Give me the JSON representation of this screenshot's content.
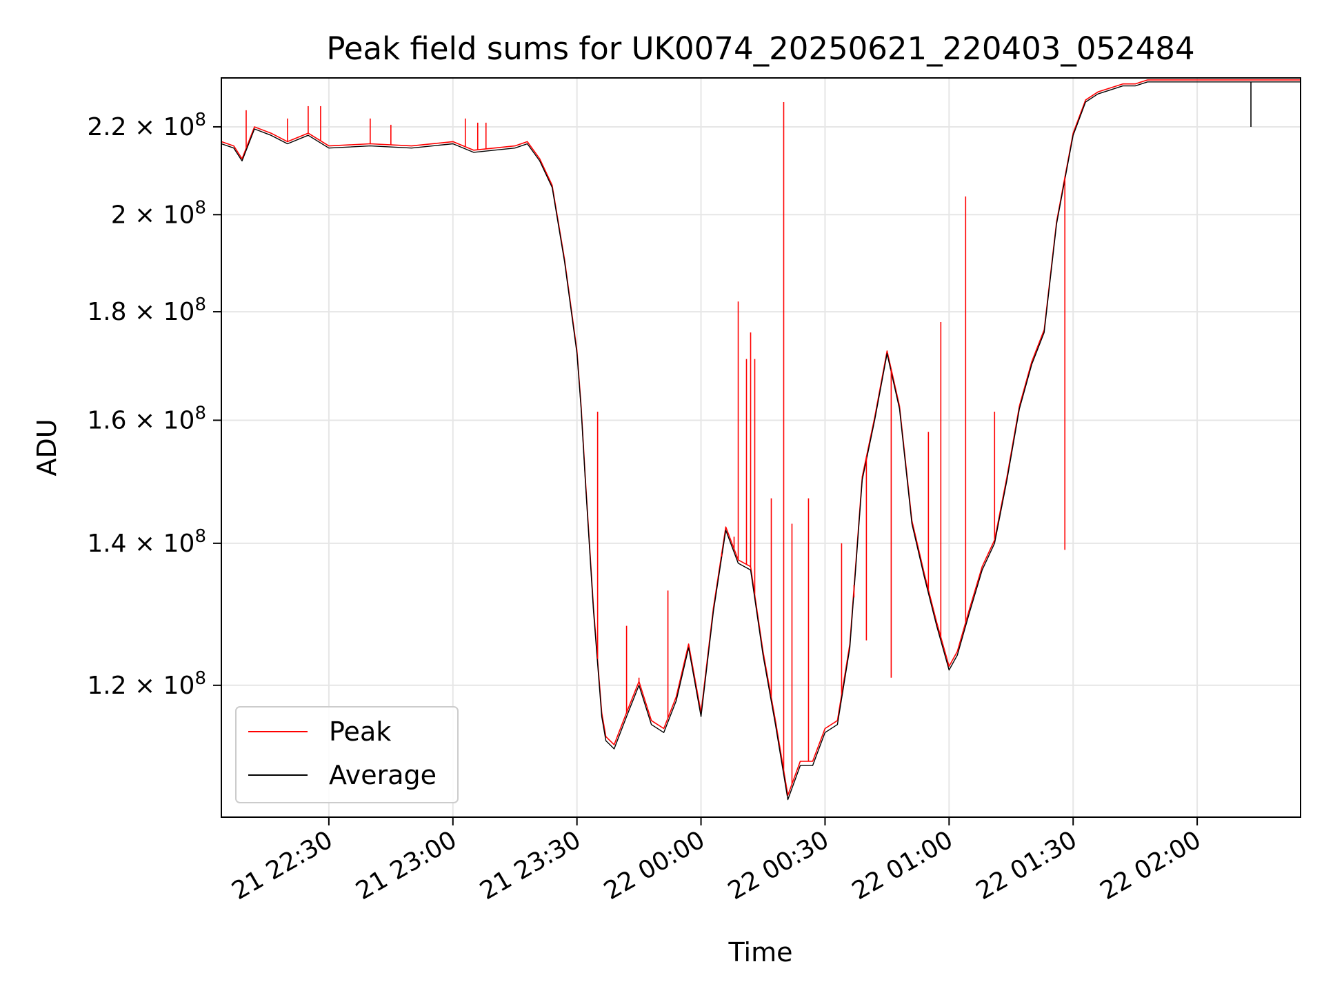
{
  "chart_data": {
    "type": "line",
    "title": "Peak field sums for UK0074_20250621_220403_052484",
    "xlabel": "Time",
    "ylabel": "ADU",
    "x_range": [
      "2025-06-21 22:04",
      "2025-06-22 02:25"
    ],
    "ylim": [
      104000000,
      232000000
    ],
    "y_scale": "log",
    "grid": true,
    "legend_position": "lower-left",
    "x_ticks": [
      {
        "value": "2025-06-21 22:30",
        "label": "21 22:30"
      },
      {
        "value": "2025-06-21 23:00",
        "label": "21 23:00"
      },
      {
        "value": "2025-06-21 23:30",
        "label": "21 23:30"
      },
      {
        "value": "2025-06-22 00:00",
        "label": "22 00:00"
      },
      {
        "value": "2025-06-22 00:30",
        "label": "22 00:30"
      },
      {
        "value": "2025-06-22 01:00",
        "label": "22 01:00"
      },
      {
        "value": "2025-06-22 01:30",
        "label": "22 01:30"
      },
      {
        "value": "2025-06-22 02:00",
        "label": "22 02:00"
      }
    ],
    "y_ticks": [
      {
        "value": 120000000,
        "mantissa": "1.2",
        "exp": "8"
      },
      {
        "value": 140000000,
        "mantissa": "1.4",
        "exp": "8"
      },
      {
        "value": 160000000,
        "mantissa": "1.6",
        "exp": "8"
      },
      {
        "value": 180000000,
        "mantissa": "1.8",
        "exp": "8"
      },
      {
        "value": 200000000,
        "mantissa": "2",
        "exp": "8"
      },
      {
        "value": 220000000,
        "mantissa": "2.2",
        "exp": "8"
      }
    ],
    "series": [
      {
        "name": "Average",
        "color": "#000000",
        "x": [
          "2025-06-21 22:04",
          "2025-06-21 22:07",
          "2025-06-21 22:09",
          "2025-06-21 22:12",
          "2025-06-21 22:16",
          "2025-06-21 22:20",
          "2025-06-21 22:25",
          "2025-06-21 22:30",
          "2025-06-21 22:40",
          "2025-06-21 22:50",
          "2025-06-21 23:00",
          "2025-06-21 23:05",
          "2025-06-21 23:10",
          "2025-06-21 23:15",
          "2025-06-21 23:18",
          "2025-06-21 23:21",
          "2025-06-21 23:24",
          "2025-06-21 23:27",
          "2025-06-21 23:30",
          "2025-06-21 23:31",
          "2025-06-21 23:32",
          "2025-06-21 23:34",
          "2025-06-21 23:36",
          "2025-06-21 23:37",
          "2025-06-21 23:39",
          "2025-06-21 23:42",
          "2025-06-21 23:45",
          "2025-06-21 23:48",
          "2025-06-21 23:51",
          "2025-06-21 23:54",
          "2025-06-21 23:57",
          "2025-06-22 00:00",
          "2025-06-22 00:03",
          "2025-06-22 00:06",
          "2025-06-22 00:09",
          "2025-06-22 00:12",
          "2025-06-22 00:15",
          "2025-06-22 00:18",
          "2025-06-22 00:21",
          "2025-06-22 00:24",
          "2025-06-22 00:27",
          "2025-06-22 00:30",
          "2025-06-22 00:33",
          "2025-06-22 00:36",
          "2025-06-22 00:39",
          "2025-06-22 00:42",
          "2025-06-22 00:45",
          "2025-06-22 00:48",
          "2025-06-22 00:51",
          "2025-06-22 00:54",
          "2025-06-22 00:57",
          "2025-06-22 01:00",
          "2025-06-22 01:02",
          "2025-06-22 01:05",
          "2025-06-22 01:08",
          "2025-06-22 01:11",
          "2025-06-22 01:14",
          "2025-06-22 01:17",
          "2025-06-22 01:20",
          "2025-06-22 01:23",
          "2025-06-22 01:26",
          "2025-06-22 01:30",
          "2025-06-22 01:33",
          "2025-06-22 01:36",
          "2025-06-22 01:39",
          "2025-06-22 01:42",
          "2025-06-22 01:45",
          "2025-06-22 01:48",
          "2025-06-22 01:51",
          "2025-06-22 01:54",
          "2025-06-22 01:57",
          "2025-06-22 02:00",
          "2025-06-22 02:05",
          "2025-06-22 02:10",
          "2025-06-22 02:12",
          "2025-06-22 02:15",
          "2025-06-22 02:20",
          "2025-06-22 02:25"
        ],
        "values": [
          216000000,
          215000000,
          212000000,
          219500000,
          218000000,
          216000000,
          218000000,
          215000000,
          215500000,
          215000000,
          216000000,
          214000000,
          214500000,
          215000000,
          216000000,
          212000000,
          206000000,
          190000000,
          172000000,
          162000000,
          150000000,
          130000000,
          116000000,
          113000000,
          112000000,
          116000000,
          120000000,
          115000000,
          114000000,
          118000000,
          125000000,
          116000000,
          130000000,
          142000000,
          137000000,
          136000000,
          124000000,
          115000000,
          106000000,
          110000000,
          110000000,
          114000000,
          115000000,
          125000000,
          150000000,
          160000000,
          172000000,
          162000000,
          143000000,
          135000000,
          128000000,
          122000000,
          124000000,
          130000000,
          136000000,
          140000000,
          150000000,
          162000000,
          170000000,
          176000000,
          198000000,
          218000000,
          226000000,
          228000000,
          229000000,
          230000000,
          230000000,
          231000000,
          231000000,
          231000000,
          231000000,
          231000000,
          231000000,
          231000000,
          231000000,
          231000000,
          231000000,
          231000000
        ]
      },
      {
        "name": "Peak",
        "color": "#ff0000",
        "x": [
          "2025-06-21 22:04",
          "2025-06-21 22:07",
          "2025-06-21 22:09",
          "2025-06-21 22:12",
          "2025-06-21 22:16",
          "2025-06-21 22:20",
          "2025-06-21 22:25",
          "2025-06-21 22:30",
          "2025-06-21 22:40",
          "2025-06-21 22:50",
          "2025-06-21 23:00",
          "2025-06-21 23:05",
          "2025-06-21 23:10",
          "2025-06-21 23:15",
          "2025-06-21 23:18",
          "2025-06-21 23:21",
          "2025-06-21 23:24",
          "2025-06-21 23:27",
          "2025-06-21 23:30",
          "2025-06-21 23:31",
          "2025-06-21 23:32",
          "2025-06-21 23:34",
          "2025-06-21 23:36",
          "2025-06-21 23:37",
          "2025-06-21 23:39",
          "2025-06-21 23:42",
          "2025-06-21 23:45",
          "2025-06-21 23:48",
          "2025-06-21 23:51",
          "2025-06-21 23:54",
          "2025-06-21 23:57",
          "2025-06-22 00:00",
          "2025-06-22 00:03",
          "2025-06-22 00:06",
          "2025-06-22 00:09",
          "2025-06-22 00:12",
          "2025-06-22 00:15",
          "2025-06-22 00:18",
          "2025-06-22 00:21",
          "2025-06-22 00:24",
          "2025-06-22 00:27",
          "2025-06-22 00:30",
          "2025-06-22 00:33",
          "2025-06-22 00:36",
          "2025-06-22 00:39",
          "2025-06-22 00:42",
          "2025-06-22 00:45",
          "2025-06-22 00:48",
          "2025-06-22 00:51",
          "2025-06-22 00:54",
          "2025-06-22 00:57",
          "2025-06-22 01:00",
          "2025-06-22 01:02",
          "2025-06-22 01:05",
          "2025-06-22 01:08",
          "2025-06-22 01:11",
          "2025-06-22 01:14",
          "2025-06-22 01:17",
          "2025-06-22 01:20",
          "2025-06-22 01:23",
          "2025-06-22 01:26",
          "2025-06-22 01:30",
          "2025-06-22 01:33",
          "2025-06-22 01:36",
          "2025-06-22 01:39",
          "2025-06-22 01:42",
          "2025-06-22 01:45",
          "2025-06-22 01:48",
          "2025-06-22 01:51",
          "2025-06-22 01:54",
          "2025-06-22 01:57",
          "2025-06-22 02:00",
          "2025-06-22 02:05",
          "2025-06-22 02:10",
          "2025-06-22 02:12",
          "2025-06-22 02:15",
          "2025-06-22 02:20",
          "2025-06-22 02:25"
        ],
        "values": [
          216500000,
          215500000,
          212500000,
          220000000,
          218500000,
          216500000,
          218500000,
          215500000,
          216000000,
          215500000,
          216500000,
          214500000,
          215000000,
          215500000,
          216500000,
          212500000,
          206500000,
          190500000,
          172500000,
          162500000,
          150500000,
          130500000,
          116500000,
          113500000,
          112500000,
          116500000,
          120500000,
          115500000,
          114500000,
          118500000,
          125500000,
          116500000,
          130500000,
          142500000,
          137500000,
          136500000,
          124500000,
          115500000,
          106500000,
          110500000,
          110500000,
          114500000,
          115500000,
          125500000,
          150500000,
          160500000,
          172500000,
          162500000,
          143500000,
          135500000,
          128500000,
          122500000,
          124500000,
          130500000,
          136500000,
          140500000,
          150500000,
          162500000,
          170500000,
          176500000,
          198500000,
          218500000,
          226500000,
          228500000,
          229500000,
          230500000,
          230500000,
          231500000,
          231500000,
          231500000,
          231500000,
          231500000,
          231500000,
          231500000,
          231500000,
          231500000,
          231500000,
          231500000
        ]
      }
    ],
    "spikes": [
      {
        "series": "Peak",
        "x": "2025-06-21 22:10",
        "value": 224000000
      },
      {
        "series": "Peak",
        "x": "2025-06-21 22:20",
        "value": 222000000
      },
      {
        "series": "Peak",
        "x": "2025-06-21 22:25",
        "value": 225000000
      },
      {
        "series": "Peak",
        "x": "2025-06-21 22:28",
        "value": 225000000
      },
      {
        "series": "Peak",
        "x": "2025-06-21 22:40",
        "value": 222000000
      },
      {
        "series": "Peak",
        "x": "2025-06-21 22:45",
        "value": 220500000
      },
      {
        "series": "Peak",
        "x": "2025-06-21 23:03",
        "value": 222000000
      },
      {
        "series": "Peak",
        "x": "2025-06-21 23:06",
        "value": 221000000
      },
      {
        "series": "Peak",
        "x": "2025-06-21 23:08",
        "value": 221000000
      },
      {
        "series": "Peak",
        "x": "2025-06-21 23:35",
        "value": 161500000
      },
      {
        "series": "Peak",
        "x": "2025-06-21 23:42",
        "value": 128000000
      },
      {
        "series": "Peak",
        "x": "2025-06-21 23:45",
        "value": 121000000
      },
      {
        "series": "Peak",
        "x": "2025-06-21 23:52",
        "value": 133000000
      },
      {
        "series": "Peak",
        "x": "2025-06-22 00:05",
        "value": 138000000
      },
      {
        "series": "Peak",
        "x": "2025-06-22 00:08",
        "value": 141000000
      },
      {
        "series": "Peak",
        "x": "2025-06-22 00:09",
        "value": 182000000
      },
      {
        "series": "Peak",
        "x": "2025-06-22 00:11",
        "value": 171000000
      },
      {
        "series": "Peak",
        "x": "2025-06-22 00:12",
        "value": 176000000
      },
      {
        "series": "Peak",
        "x": "2025-06-22 00:13",
        "value": 171000000
      },
      {
        "series": "Peak",
        "x": "2025-06-22 00:17",
        "value": 147000000
      },
      {
        "series": "Peak",
        "x": "2025-06-22 00:20",
        "value": 226000000
      },
      {
        "series": "Peak",
        "x": "2025-06-22 00:22",
        "value": 143000000
      },
      {
        "series": "Peak",
        "x": "2025-06-22 00:26",
        "value": 147000000
      },
      {
        "series": "Peak",
        "x": "2025-06-22 00:34",
        "value": 140000000
      },
      {
        "series": "Peak",
        "x": "2025-06-22 00:37",
        "value": 132000000
      },
      {
        "series": "Peak",
        "x": "2025-06-22 00:40",
        "value": 126000000
      },
      {
        "series": "Peak",
        "x": "2025-06-22 00:46",
        "value": 121000000
      },
      {
        "series": "Peak",
        "x": "2025-06-22 00:55",
        "value": 158000000
      },
      {
        "series": "Peak",
        "x": "2025-06-22 00:58",
        "value": 178000000
      },
      {
        "series": "Peak",
        "x": "2025-06-22 01:04",
        "value": 204000000
      },
      {
        "series": "Peak",
        "x": "2025-06-22 01:11",
        "value": 161500000
      },
      {
        "series": "Peak",
        "x": "2025-06-22 01:28",
        "value": 139000000
      }
    ],
    "dips": [
      {
        "series": "Average",
        "x": "2025-06-22 02:13",
        "value": 220000000
      }
    ]
  }
}
